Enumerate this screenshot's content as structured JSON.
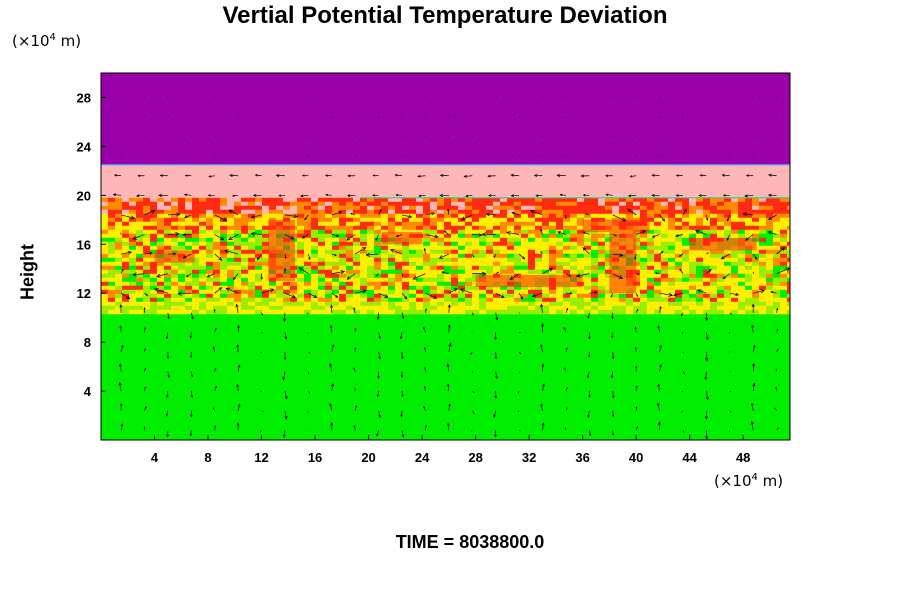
{
  "title": "Vertial Potential Temperature Deviation",
  "y_unit_prefix": "(×10",
  "y_unit_exp": "4",
  "y_unit_suffix": " m)",
  "x_unit_prefix": "(×10",
  "x_unit_exp": "4",
  "x_unit_suffix": " m)",
  "ylabel": "Height",
  "time_label": "TIME = 8038800.0",
  "chart_data": {
    "type": "heatmap",
    "title": "Vertial Potential Temperature Deviation",
    "xlabel": "",
    "ylabel": "Height",
    "x_unit": "(×10^4 m)",
    "y_unit": "(×10^4 m)",
    "xlim": [
      0,
      51.5
    ],
    "ylim": [
      0,
      30
    ],
    "x_ticks": [
      4,
      8,
      12,
      16,
      20,
      24,
      28,
      32,
      36,
      40,
      44,
      48
    ],
    "y_ticks": [
      4,
      8,
      12,
      16,
      20,
      24,
      28
    ],
    "grid": false,
    "legend": "none",
    "overlay": "velocity vector arrows",
    "layers": [
      {
        "y_from": 22.5,
        "y_to": 30,
        "color": "#9900aa",
        "description": "uniform top layer"
      },
      {
        "y_from": 19.8,
        "y_to": 22.5,
        "color": "#ffb6b6",
        "description": "uniform layer"
      },
      {
        "y_from": 10.5,
        "y_to": 19.8,
        "color": "#ffd700",
        "description": "mixed turbulent layer (yellow/red/green)"
      },
      {
        "y_from": 0,
        "y_to": 10.5,
        "color": "#00ee00",
        "description": "uniform lower layer"
      }
    ],
    "colors": {
      "top": "#9900aa",
      "pink": "#ffb6b6",
      "red": "#ff2a10",
      "orange": "#ff8a00",
      "yellow": "#ffee00",
      "lime": "#99ee00",
      "green": "#00ee00"
    }
  }
}
